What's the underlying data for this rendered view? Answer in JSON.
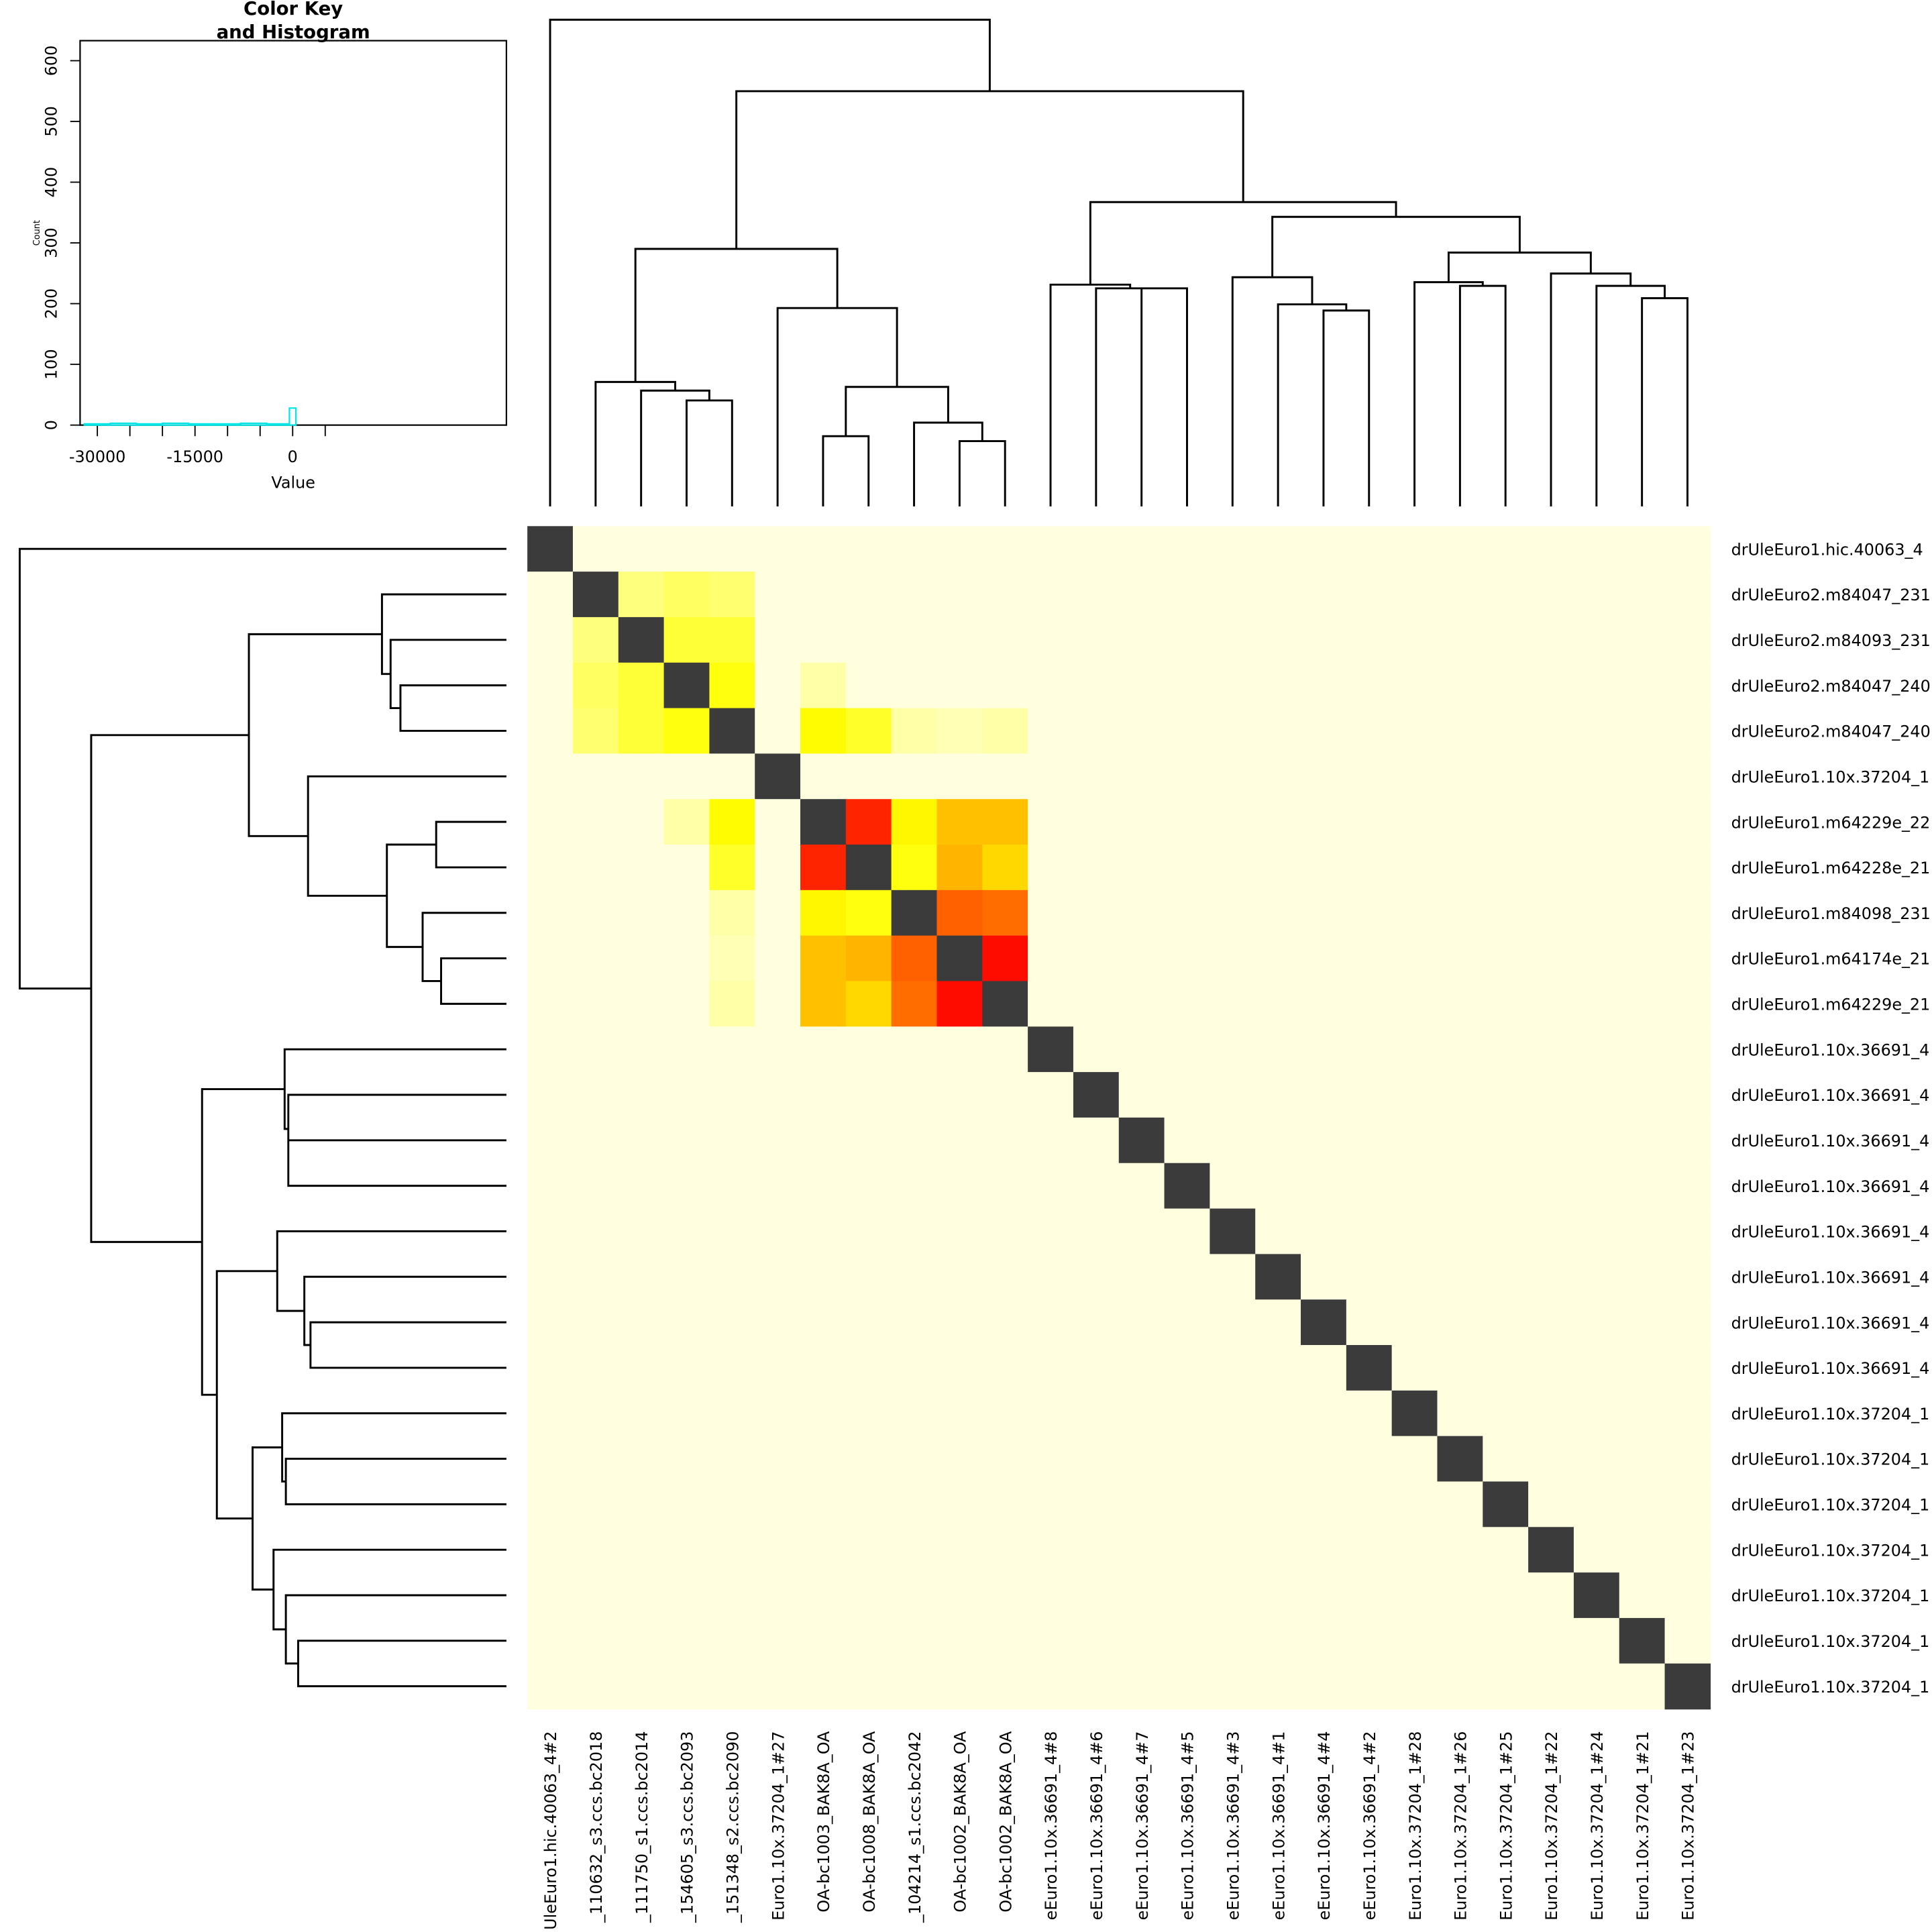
{
  "chart_data": [
    {
      "type": "histogram",
      "title": [
        "Color Key",
        "and Histogram"
      ],
      "xlabel": "Value",
      "ylabel": "Count",
      "xlim": [
        -32650,
        32830
      ],
      "ylim": [
        0,
        633
      ],
      "xticks": [
        -30000,
        -15000,
        0
      ],
      "xminor_ticks": [
        -25000,
        -20000,
        -10000,
        -5000,
        5000
      ],
      "yticks": [
        0,
        100,
        200,
        300,
        400,
        500,
        600
      ],
      "bins": [
        -32000,
        -28000,
        -24000,
        -20000,
        -16000,
        -12000,
        -8000,
        -4000,
        -500,
        500
      ],
      "counts": [
        2,
        3,
        2,
        3,
        2,
        2,
        3,
        2,
        28
      ],
      "color": "#00e5e5"
    },
    {
      "type": "heatmap",
      "rows": [
        "drUleEuro1.hic.40063_4",
        "drUleEuro2.m84047_231",
        "drUleEuro2.m84093_231",
        "drUleEuro2.m84047_240",
        "drUleEuro2.m84047_240",
        "drUleEuro1.10x.37204_1",
        "drUleEuro1.m64229e_22",
        "drUleEuro1.m64228e_21",
        "drUleEuro1.m84098_231",
        "drUleEuro1.m64174e_21",
        "drUleEuro1.m64229e_21",
        "drUleEuro1.10x.36691_4",
        "drUleEuro1.10x.36691_4",
        "drUleEuro1.10x.36691_4",
        "drUleEuro1.10x.36691_4",
        "drUleEuro1.10x.36691_4",
        "drUleEuro1.10x.36691_4",
        "drUleEuro1.10x.36691_4",
        "drUleEuro1.10x.36691_4",
        "drUleEuro1.10x.37204_1",
        "drUleEuro1.10x.37204_1",
        "drUleEuro1.10x.37204_1",
        "drUleEuro1.10x.37204_1",
        "drUleEuro1.10x.37204_1",
        "drUleEuro1.10x.37204_1",
        "drUleEuro1.10x.37204_1"
      ],
      "columns": [
        "UleEuro1.hic.40063_4#2",
        "_110632_s3.ccs.bc2018",
        "_111750_s1.ccs.bc2014",
        "_154605_s3.ccs.bc2093",
        "_151348_s2.ccs.bc2090",
        "Euro1.10x.37204_1#27",
        "OA-bc1003_BAK8A_OA",
        "OA-bc1008_BAK8A_OA",
        "_104214_s1.ccs.bc2042",
        "OA-bc1002_BAK8A_OA",
        "OA-bc1002_BAK8A_OA",
        "eEuro1.10x.36691_4#8",
        "eEuro1.10x.36691_4#6",
        "eEuro1.10x.36691_4#7",
        "eEuro1.10x.36691_4#5",
        "eEuro1.10x.36691_4#3",
        "eEuro1.10x.36691_4#1",
        "eEuro1.10x.36691_4#4",
        "eEuro1.10x.36691_4#2",
        "Euro1.10x.37204_1#28",
        "Euro1.10x.37204_1#26",
        "Euro1.10x.37204_1#25",
        "Euro1.10x.37204_1#22",
        "Euro1.10x.37204_1#24",
        "Euro1.10x.37204_1#21",
        "Euro1.10x.37204_1#23"
      ],
      "values": [
        [
          null,
          0,
          0,
          0,
          0,
          0,
          0,
          0,
          0,
          0,
          0,
          0,
          0,
          0,
          0,
          0,
          0,
          0,
          0,
          0,
          0,
          0,
          0,
          0,
          0,
          0
        ],
        [
          0,
          null,
          -3500,
          -4500,
          -4000,
          0,
          0,
          0,
          0,
          0,
          0,
          0,
          0,
          0,
          0,
          0,
          0,
          0,
          0,
          0,
          0,
          0,
          0,
          0,
          0,
          0
        ],
        [
          0,
          -3500,
          null,
          -6000,
          -6000,
          0,
          0,
          0,
          0,
          0,
          0,
          0,
          0,
          0,
          0,
          0,
          0,
          0,
          0,
          0,
          0,
          0,
          0,
          0,
          0,
          0
        ],
        [
          0,
          -4500,
          -6000,
          null,
          -7500,
          0,
          -2000,
          0,
          0,
          0,
          0,
          0,
          0,
          0,
          0,
          0,
          0,
          0,
          0,
          0,
          0,
          0,
          0,
          0,
          0,
          0
        ],
        [
          0,
          -4000,
          -6000,
          -7500,
          null,
          0,
          -8500,
          -6500,
          -2000,
          -1500,
          -2000,
          0,
          0,
          0,
          0,
          0,
          0,
          0,
          0,
          0,
          0,
          0,
          0,
          0,
          0,
          0
        ],
        [
          0,
          0,
          0,
          0,
          0,
          null,
          0,
          0,
          0,
          0,
          0,
          0,
          0,
          0,
          0,
          0,
          0,
          0,
          0,
          0,
          0,
          0,
          0,
          0,
          0,
          0
        ],
        [
          0,
          0,
          0,
          -2000,
          -8500,
          0,
          null,
          -29000,
          -9000,
          -16000,
          -16000,
          0,
          0,
          0,
          0,
          0,
          0,
          0,
          0,
          0,
          0,
          0,
          0,
          0,
          0,
          0
        ],
        [
          0,
          0,
          0,
          0,
          -6500,
          0,
          -29000,
          null,
          -7500,
          -17000,
          -13000,
          0,
          0,
          0,
          0,
          0,
          0,
          0,
          0,
          0,
          0,
          0,
          0,
          0,
          0,
          0
        ],
        [
          0,
          0,
          0,
          0,
          -2000,
          0,
          -9000,
          -7500,
          null,
          -24000,
          -23000,
          0,
          0,
          0,
          0,
          0,
          0,
          0,
          0,
          0,
          0,
          0,
          0,
          0,
          0,
          0
        ],
        [
          0,
          0,
          0,
          0,
          -1500,
          0,
          -16000,
          -17000,
          -24000,
          null,
          -31000,
          0,
          0,
          0,
          0,
          0,
          0,
          0,
          0,
          0,
          0,
          0,
          0,
          0,
          0,
          0
        ],
        [
          0,
          0,
          0,
          0,
          -2000,
          0,
          -16000,
          -13000,
          -23000,
          -31000,
          null,
          0,
          0,
          0,
          0,
          0,
          0,
          0,
          0,
          0,
          0,
          0,
          0,
          0,
          0,
          0
        ],
        [
          0,
          0,
          0,
          0,
          0,
          0,
          0,
          0,
          0,
          0,
          0,
          null,
          0,
          0,
          0,
          0,
          0,
          0,
          0,
          0,
          0,
          0,
          0,
          0,
          0,
          0
        ],
        [
          0,
          0,
          0,
          0,
          0,
          0,
          0,
          0,
          0,
          0,
          0,
          0,
          null,
          0,
          0,
          0,
          0,
          0,
          0,
          0,
          0,
          0,
          0,
          0,
          0,
          0
        ],
        [
          0,
          0,
          0,
          0,
          0,
          0,
          0,
          0,
          0,
          0,
          0,
          0,
          0,
          null,
          0,
          0,
          0,
          0,
          0,
          0,
          0,
          0,
          0,
          0,
          0,
          0
        ],
        [
          0,
          0,
          0,
          0,
          0,
          0,
          0,
          0,
          0,
          0,
          0,
          0,
          0,
          0,
          null,
          0,
          0,
          0,
          0,
          0,
          0,
          0,
          0,
          0,
          0,
          0
        ],
        [
          0,
          0,
          0,
          0,
          0,
          0,
          0,
          0,
          0,
          0,
          0,
          0,
          0,
          0,
          0,
          null,
          0,
          0,
          0,
          0,
          0,
          0,
          0,
          0,
          0,
          0
        ],
        [
          0,
          0,
          0,
          0,
          0,
          0,
          0,
          0,
          0,
          0,
          0,
          0,
          0,
          0,
          0,
          0,
          null,
          0,
          0,
          0,
          0,
          0,
          0,
          0,
          0,
          0
        ],
        [
          0,
          0,
          0,
          0,
          0,
          0,
          0,
          0,
          0,
          0,
          0,
          0,
          0,
          0,
          0,
          0,
          0,
          null,
          0,
          0,
          0,
          0,
          0,
          0,
          0,
          0
        ],
        [
          0,
          0,
          0,
          0,
          0,
          0,
          0,
          0,
          0,
          0,
          0,
          0,
          0,
          0,
          0,
          0,
          0,
          0,
          null,
          0,
          0,
          0,
          0,
          0,
          0,
          0
        ],
        [
          0,
          0,
          0,
          0,
          0,
          0,
          0,
          0,
          0,
          0,
          0,
          0,
          0,
          0,
          0,
          0,
          0,
          0,
          0,
          null,
          0,
          0,
          0,
          0,
          0,
          0
        ],
        [
          0,
          0,
          0,
          0,
          0,
          0,
          0,
          0,
          0,
          0,
          0,
          0,
          0,
          0,
          0,
          0,
          0,
          0,
          0,
          0,
          null,
          0,
          0,
          0,
          0,
          0
        ],
        [
          0,
          0,
          0,
          0,
          0,
          0,
          0,
          0,
          0,
          0,
          0,
          0,
          0,
          0,
          0,
          0,
          0,
          0,
          0,
          0,
          0,
          null,
          0,
          0,
          0,
          0
        ],
        [
          0,
          0,
          0,
          0,
          0,
          0,
          0,
          0,
          0,
          0,
          0,
          0,
          0,
          0,
          0,
          0,
          0,
          0,
          0,
          0,
          0,
          0,
          null,
          0,
          0,
          0
        ],
        [
          0,
          0,
          0,
          0,
          0,
          0,
          0,
          0,
          0,
          0,
          0,
          0,
          0,
          0,
          0,
          0,
          0,
          0,
          0,
          0,
          0,
          0,
          0,
          null,
          0,
          0
        ],
        [
          0,
          0,
          0,
          0,
          0,
          0,
          0,
          0,
          0,
          0,
          0,
          0,
          0,
          0,
          0,
          0,
          0,
          0,
          0,
          0,
          0,
          0,
          0,
          0,
          null,
          0
        ],
        [
          0,
          0,
          0,
          0,
          0,
          0,
          0,
          0,
          0,
          0,
          0,
          0,
          0,
          0,
          0,
          0,
          0,
          0,
          0,
          0,
          0,
          0,
          0,
          0,
          0,
          null
        ]
      ],
      "zlim": [
        -32000,
        0
      ],
      "colors": [
        "#ff0000",
        "#ff6000",
        "#ffc000",
        "#ffff00",
        "#ffffe0"
      ],
      "na_color": "#3b3b3b"
    }
  ]
}
